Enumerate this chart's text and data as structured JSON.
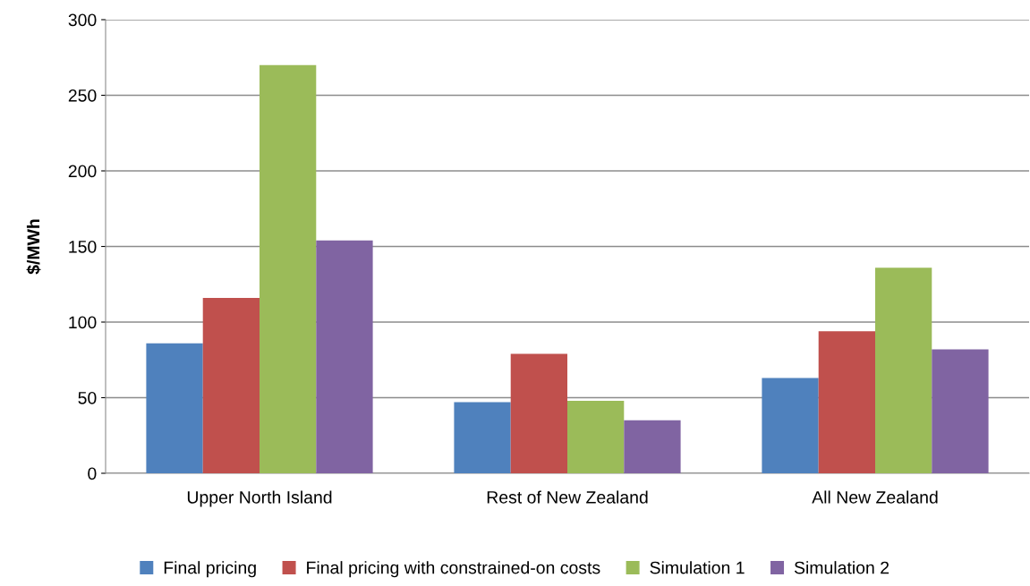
{
  "chart_data": {
    "type": "bar",
    "ylabel": "$/MWh",
    "categories": [
      "Upper North Island",
      "Rest of New Zealand",
      "All New Zealand"
    ],
    "series": [
      {
        "name": "Final pricing",
        "color": "#4f81bd",
        "values": [
          86,
          47,
          63
        ]
      },
      {
        "name": "Final pricing with constrained-on costs",
        "color": "#c0504d",
        "values": [
          116,
          79,
          94
        ]
      },
      {
        "name": "Simulation 1",
        "color": "#9bbb59",
        "values": [
          270,
          48,
          136
        ]
      },
      {
        "name": "Simulation 2",
        "color": "#8064a2",
        "values": [
          154,
          35,
          82
        ]
      }
    ],
    "ylim": [
      0,
      300
    ],
    "yticks": [
      0,
      50,
      100,
      150,
      200,
      250,
      300
    ],
    "grid": "y",
    "legend": "bottom"
  }
}
